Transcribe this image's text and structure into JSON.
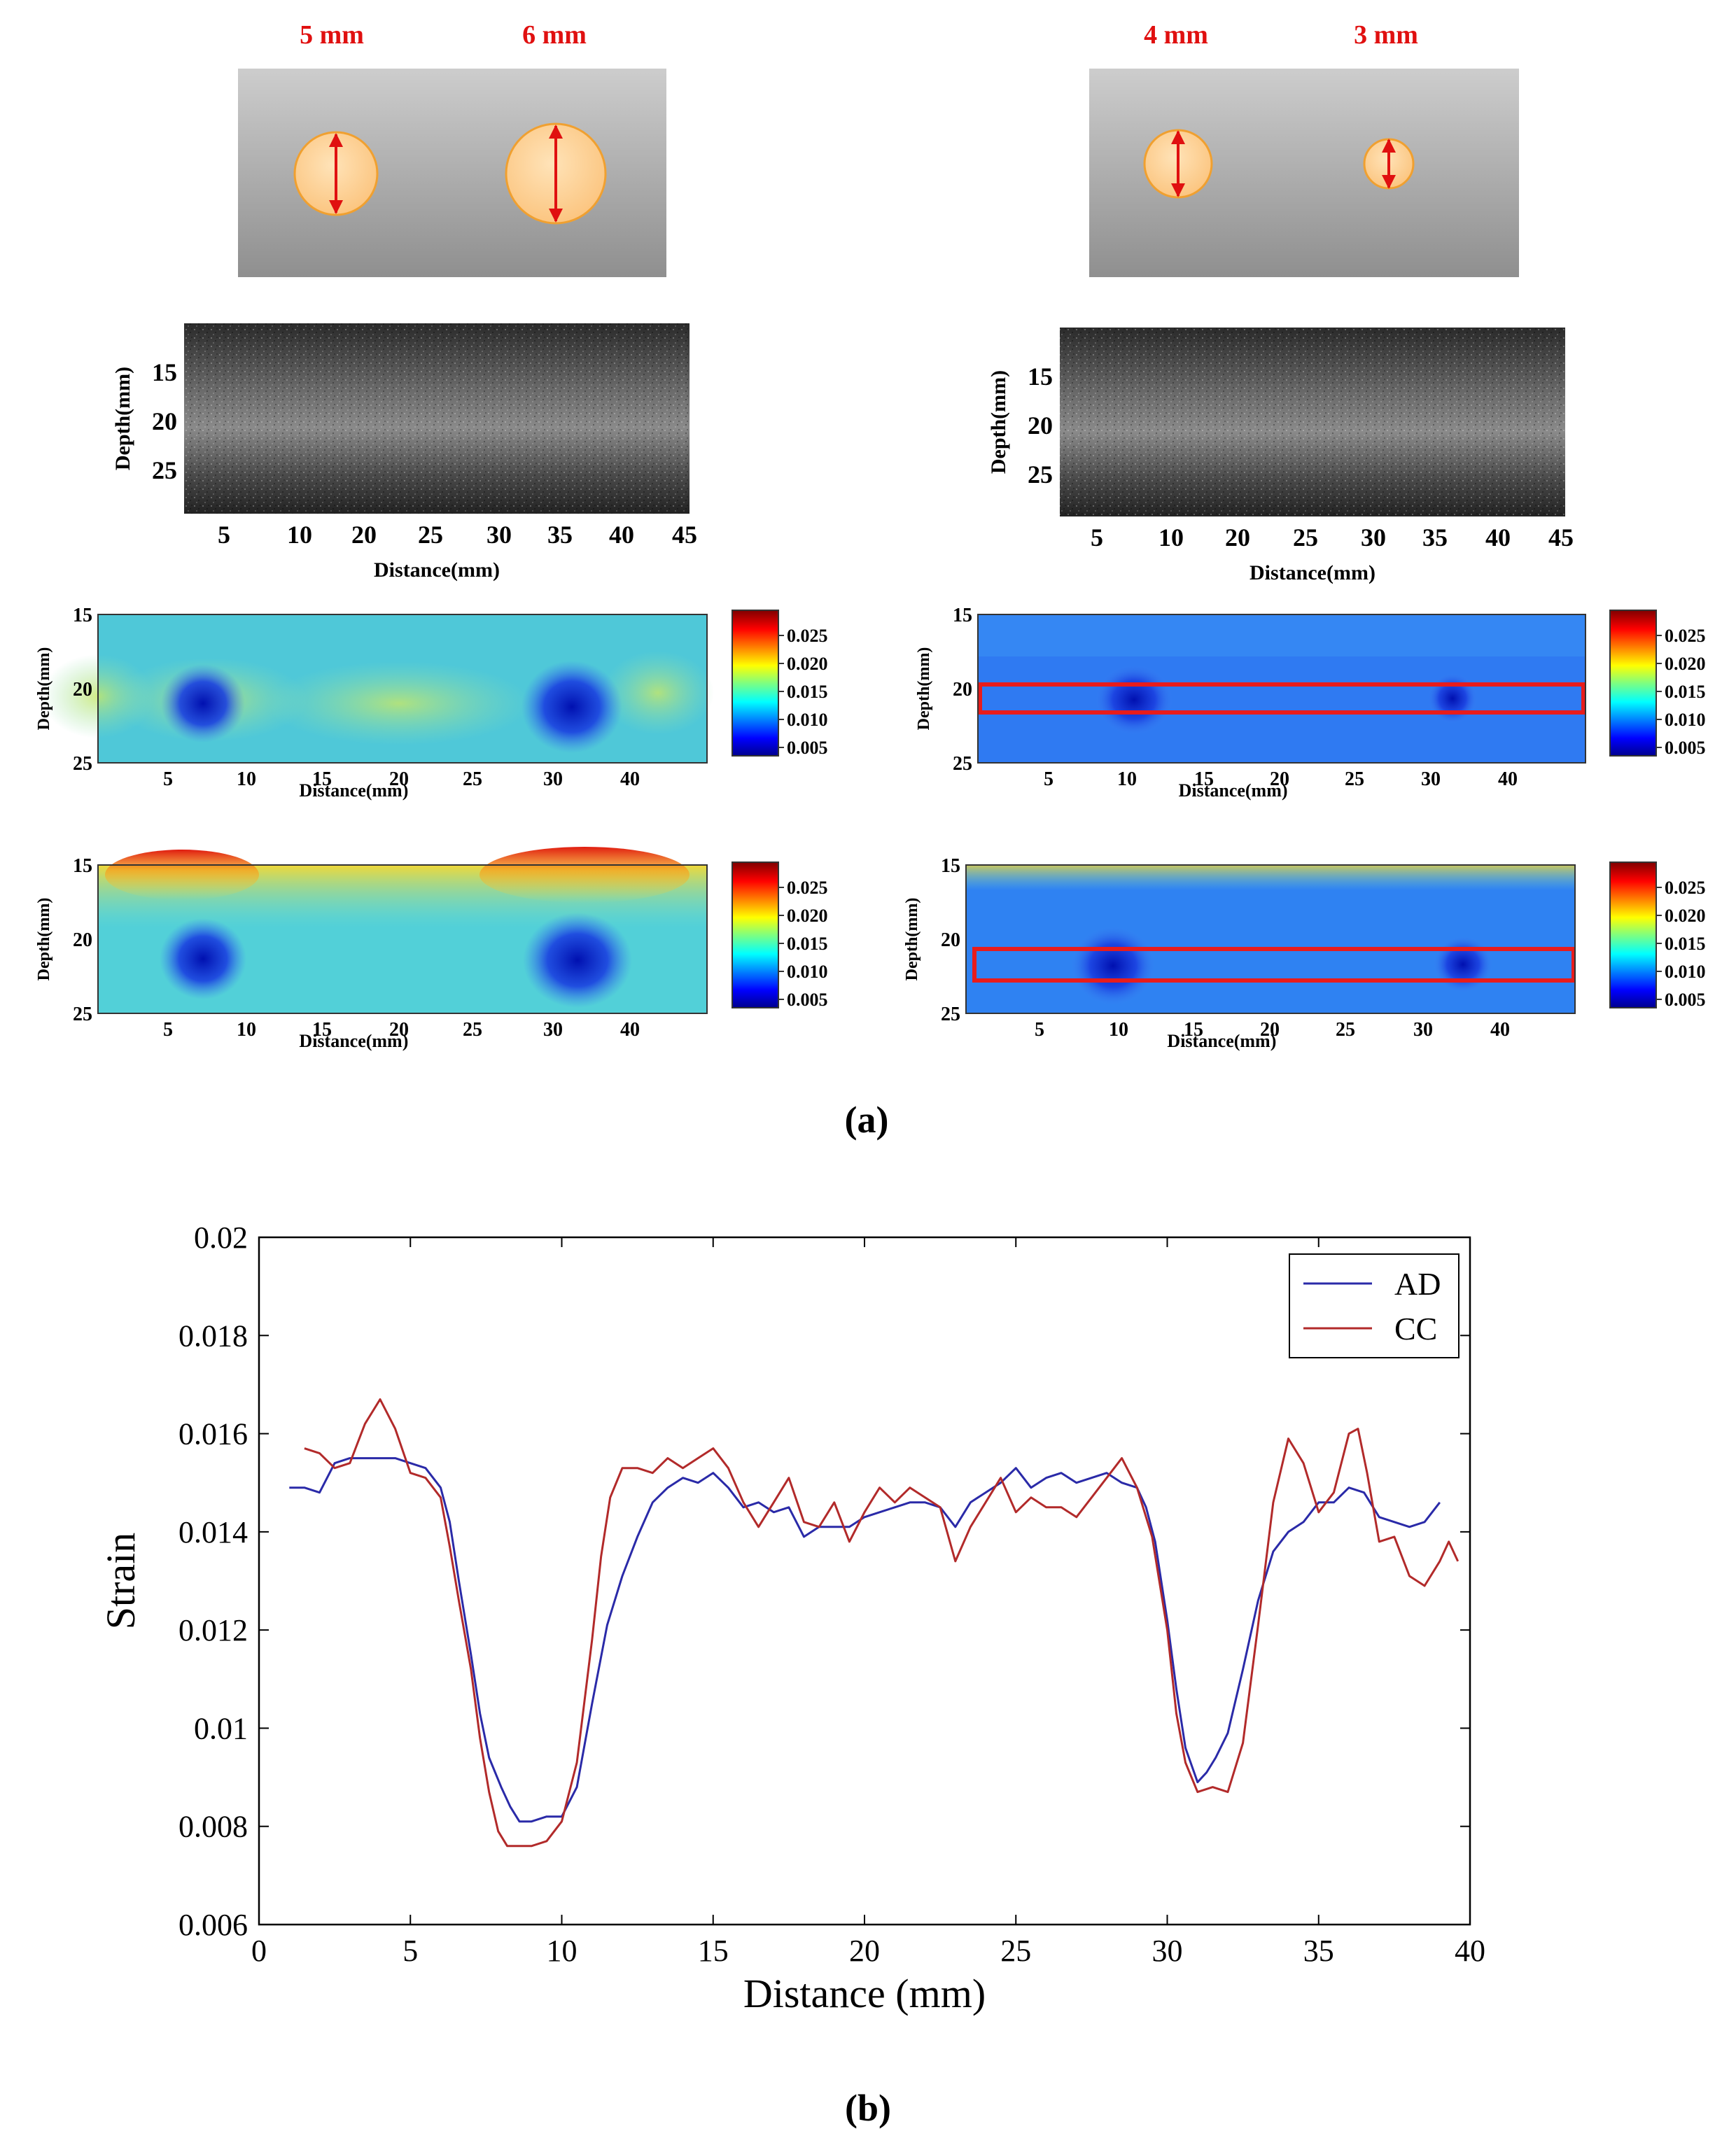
{
  "panel_a": {
    "label": "(a)",
    "phantoms": [
      {
        "name": "left",
        "inclusions": [
          {
            "label": "5 mm",
            "diameter_mm": 5
          },
          {
            "label": "6 mm",
            "diameter_mm": 6
          }
        ]
      },
      {
        "name": "right",
        "inclusions": [
          {
            "label": "4 mm",
            "diameter_mm": 4
          },
          {
            "label": "3 mm",
            "diameter_mm": 3
          }
        ]
      }
    ],
    "bmode": {
      "ylabel": "Depth(mm)",
      "xlabel": "Distance(mm)",
      "yticks": [
        "15",
        "20",
        "25"
      ],
      "xticks": [
        "5",
        "10",
        "20",
        "25",
        "30",
        "35",
        "40",
        "45"
      ]
    },
    "strain_maps": {
      "ylabel": "Depth(mm)",
      "xlabel": "Distance(mm)",
      "yticks": [
        "15",
        "20",
        "25"
      ],
      "xticks": [
        "5",
        "10",
        "15",
        "20",
        "25",
        "30",
        "40"
      ],
      "colorbar_ticks": [
        "0.025",
        "0.020",
        "0.015",
        "0.010",
        "0.005"
      ]
    }
  },
  "panel_b": {
    "label": "(b)",
    "colors": {
      "AD": "#2a2aa8",
      "CC": "#b22a2a"
    }
  },
  "chart_data": {
    "type": "line",
    "title": "",
    "xlabel": "Distance (mm)",
    "ylabel": "Strain",
    "xlim": [
      0,
      40
    ],
    "ylim": [
      0.006,
      0.02
    ],
    "xticks": [
      0,
      5,
      10,
      15,
      20,
      25,
      30,
      35,
      40
    ],
    "yticks": [
      0.006,
      0.008,
      0.01,
      0.012,
      0.014,
      0.016,
      0.018,
      0.02
    ],
    "ytick_labels": [
      "0.006",
      "0.008",
      "0.01",
      "0.012",
      "0.014",
      "0.016",
      "0.018",
      "0.02"
    ],
    "xtick_labels": [
      "0",
      "5",
      "10",
      "15",
      "20",
      "25",
      "30",
      "35",
      "40"
    ],
    "legend": "top-right",
    "series": [
      {
        "name": "AD",
        "x": [
          1,
          1.5,
          2,
          2.5,
          3,
          3.5,
          4,
          4.5,
          5,
          5.5,
          6,
          6.3,
          6.6,
          7,
          7.3,
          7.6,
          8,
          8.3,
          8.6,
          9,
          9.5,
          10,
          10.5,
          11,
          11.5,
          12,
          12.5,
          13,
          13.5,
          14,
          14.5,
          15,
          15.5,
          16,
          16.5,
          17,
          17.5,
          18,
          18.5,
          19,
          19.5,
          20,
          20.5,
          21,
          21.5,
          22,
          22.5,
          23,
          23.5,
          24,
          24.5,
          25,
          25.5,
          26,
          26.5,
          27,
          27.5,
          28,
          28.5,
          29,
          29.3,
          29.6,
          30,
          30.3,
          30.6,
          31,
          31.3,
          31.6,
          32,
          32.5,
          33,
          33.5,
          34,
          34.5,
          35,
          35.5,
          36,
          36.5,
          37,
          37.5,
          38,
          38.5,
          39
        ],
        "values": [
          0.0149,
          0.0149,
          0.0148,
          0.0154,
          0.0155,
          0.0155,
          0.0155,
          0.0155,
          0.0154,
          0.0153,
          0.0149,
          0.0142,
          0.013,
          0.0115,
          0.0103,
          0.0094,
          0.0088,
          0.0084,
          0.0081,
          0.0081,
          0.0082,
          0.0082,
          0.0088,
          0.0105,
          0.0121,
          0.0131,
          0.0139,
          0.0146,
          0.0149,
          0.0151,
          0.015,
          0.0152,
          0.0149,
          0.0145,
          0.0146,
          0.0144,
          0.0145,
          0.0139,
          0.0141,
          0.0141,
          0.0141,
          0.0143,
          0.0144,
          0.0145,
          0.0146,
          0.0146,
          0.0145,
          0.0141,
          0.0146,
          0.0148,
          0.015,
          0.0153,
          0.0149,
          0.0151,
          0.0152,
          0.015,
          0.0151,
          0.0152,
          0.015,
          0.0149,
          0.0145,
          0.0138,
          0.0122,
          0.0108,
          0.0096,
          0.0089,
          0.0091,
          0.0094,
          0.0099,
          0.0112,
          0.0126,
          0.0136,
          0.014,
          0.0142,
          0.0146,
          0.0146,
          0.0149,
          0.0148,
          0.0143,
          0.0142,
          0.0141,
          0.0142,
          0.0146
        ]
      },
      {
        "name": "CC",
        "x": [
          1.5,
          2,
          2.5,
          3,
          3.5,
          4,
          4.5,
          5,
          5.5,
          6,
          6.3,
          6.6,
          7,
          7.3,
          7.6,
          7.9,
          8.2,
          8.6,
          9,
          9.5,
          10,
          10.5,
          11,
          11.3,
          11.6,
          12,
          12.5,
          13,
          13.5,
          14,
          14.5,
          15,
          15.5,
          16,
          16.5,
          17,
          17.5,
          18,
          18.5,
          19,
          19.5,
          20,
          20.5,
          21,
          21.5,
          22,
          22.5,
          23,
          23.5,
          24,
          24.5,
          25,
          25.5,
          26,
          26.5,
          27,
          27.5,
          28,
          28.5,
          29,
          29.5,
          30,
          30.3,
          30.6,
          31,
          31.5,
          32,
          32.5,
          33,
          33.5,
          34,
          34.5,
          35,
          35.5,
          36,
          36.3,
          36.6,
          37,
          37.5,
          38,
          38.5,
          39,
          39.3,
          39.6
        ],
        "values": [
          0.0157,
          0.0156,
          0.0153,
          0.0154,
          0.0162,
          0.0167,
          0.0161,
          0.0152,
          0.0151,
          0.0147,
          0.0137,
          0.0126,
          0.0112,
          0.0098,
          0.0087,
          0.0079,
          0.0076,
          0.0076,
          0.0076,
          0.0077,
          0.0081,
          0.0093,
          0.0118,
          0.0135,
          0.0147,
          0.0153,
          0.0153,
          0.0152,
          0.0155,
          0.0153,
          0.0155,
          0.0157,
          0.0153,
          0.0146,
          0.0141,
          0.0146,
          0.0151,
          0.0142,
          0.0141,
          0.0146,
          0.0138,
          0.0144,
          0.0149,
          0.0146,
          0.0149,
          0.0147,
          0.0145,
          0.0134,
          0.0141,
          0.0146,
          0.0151,
          0.0144,
          0.0147,
          0.0145,
          0.0145,
          0.0143,
          0.0147,
          0.0151,
          0.0155,
          0.0149,
          0.0139,
          0.012,
          0.0103,
          0.0093,
          0.0087,
          0.0088,
          0.0087,
          0.0097,
          0.0121,
          0.0146,
          0.0159,
          0.0154,
          0.0144,
          0.0148,
          0.016,
          0.0161,
          0.0152,
          0.0138,
          0.0139,
          0.0131,
          0.0129,
          0.0134,
          0.0138,
          0.0134
        ]
      }
    ]
  }
}
